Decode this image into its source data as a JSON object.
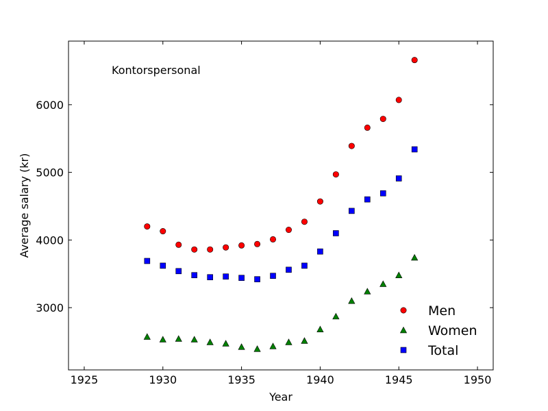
{
  "chart_data": {
    "type": "scatter",
    "xlabel": "Year",
    "ylabel": "Average salary (kr)",
    "annotation": "Kontorspersonal",
    "xlim": [
      1924,
      1951
    ],
    "ylim": [
      2080,
      6940
    ],
    "xticks": [
      1925,
      1930,
      1935,
      1940,
      1945,
      1950
    ],
    "yticks": [
      3000,
      4000,
      5000,
      6000
    ],
    "grid": false,
    "legend_position": "lower-right",
    "x": [
      1929,
      1930,
      1931,
      1932,
      1933,
      1934,
      1935,
      1936,
      1937,
      1938,
      1939,
      1940,
      1941,
      1942,
      1943,
      1944,
      1945,
      1946
    ],
    "series": [
      {
        "name": "Men",
        "marker": "circle",
        "color": "#ff0000",
        "values": [
          4200,
          4130,
          3930,
          3860,
          3860,
          3890,
          3920,
          3940,
          4010,
          4150,
          4270,
          4570,
          4970,
          5390,
          5660,
          5790,
          6070,
          6660
        ]
      },
      {
        "name": "Women",
        "marker": "triangle",
        "color": "#008000",
        "values": [
          2570,
          2530,
          2540,
          2530,
          2490,
          2470,
          2420,
          2390,
          2430,
          2490,
          2510,
          2680,
          2870,
          3100,
          3240,
          3350,
          3480,
          3740
        ]
      },
      {
        "name": "Total",
        "marker": "square",
        "color": "#0000ff",
        "values": [
          3690,
          3620,
          3540,
          3480,
          3450,
          3460,
          3440,
          3420,
          3470,
          3560,
          3620,
          3830,
          4100,
          4430,
          4600,
          4690,
          4910,
          5340
        ]
      }
    ]
  }
}
